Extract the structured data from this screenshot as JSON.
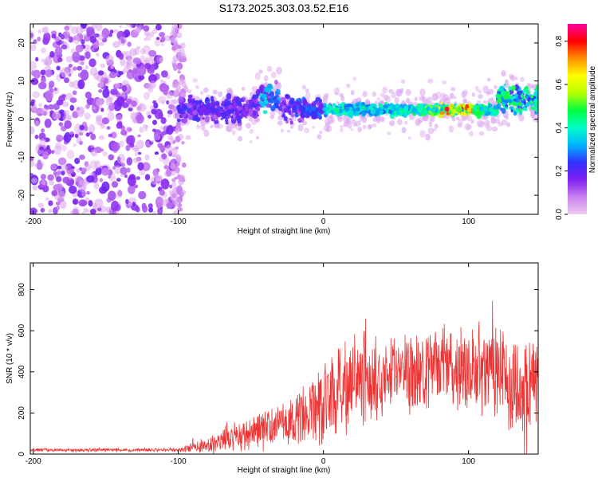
{
  "title": "S173.2025.303.03.52.E16",
  "chart_data": [
    {
      "type": "heatmap",
      "xlabel": "Height of straight line (km)",
      "ylabel": "Frequency (Hz)",
      "xlim": [
        -202,
        148
      ],
      "ylim": [
        -25,
        25
      ],
      "xticks": [
        -200,
        -100,
        0,
        100
      ],
      "yticks": [
        -20,
        -10,
        0,
        10,
        20
      ],
      "colorbar": {
        "label": "Normalized spectral amplitude",
        "range": [
          0,
          0.88
        ],
        "ticks": [
          0.0,
          0.2,
          0.4,
          0.6,
          0.8
        ],
        "colormap": [
          "#f0ccf0",
          "#c880f0",
          "#8020f0",
          "#3030ff",
          "#00b4ff",
          "#00ffc8",
          "#00ff40",
          "#b4ff00",
          "#ffff00",
          "#ff9000",
          "#ff0000",
          "#ff00a0"
        ]
      },
      "regions": [
        {
          "x_range": [
            -202,
            -100
          ],
          "description": "broadband noise",
          "amplitude": 0.05
        },
        {
          "x_range": [
            -100,
            -20
          ],
          "center_hz": 2,
          "amplitude": 0.15
        },
        {
          "x_range": [
            -45,
            -30
          ],
          "center_hz": 8,
          "amplitude": 0.3
        },
        {
          "x_range": [
            0,
            120
          ],
          "center_hz": 2.5,
          "amplitude_peak": 0.85,
          "peak_x": 90
        },
        {
          "x_range": [
            120,
            148
          ],
          "center_hz": 5,
          "amplitude": 0.5
        }
      ]
    },
    {
      "type": "line",
      "color": "#ee3333",
      "xlabel": "Height of straight line (km)",
      "ylabel": "SNR (10 * v/v)",
      "xlim": [
        -202,
        148
      ],
      "ylim": [
        0,
        930
      ],
      "xticks": [
        -200,
        -100,
        0,
        100
      ],
      "yticks": [
        0,
        200,
        400,
        600,
        800
      ],
      "envelope": {
        "x": [
          -202,
          -100,
          -80,
          -60,
          -40,
          -20,
          0,
          20,
          40,
          60,
          80,
          100,
          120,
          140,
          148
        ],
        "mean": [
          20,
          20,
          40,
          80,
          120,
          170,
          250,
          330,
          380,
          400,
          410,
          420,
          380,
          300,
          330
        ],
        "spread": [
          10,
          10,
          50,
          80,
          110,
          150,
          250,
          260,
          250,
          250,
          230,
          240,
          300,
          350,
          330
        ]
      }
    }
  ]
}
